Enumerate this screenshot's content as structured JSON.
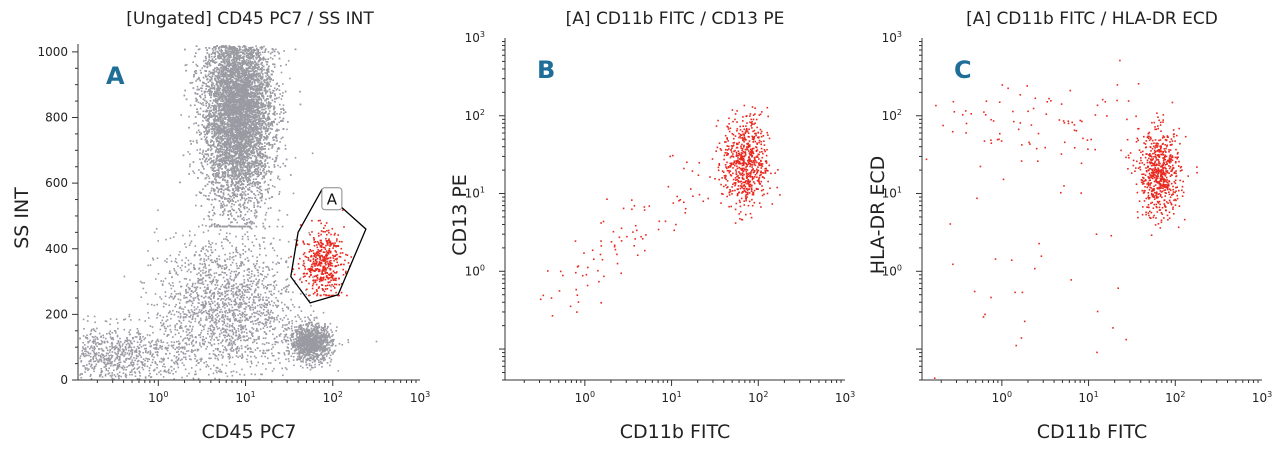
{
  "colors": {
    "gray_events": "#9a9aa2",
    "red_events": "#e8281e",
    "panel_letter": "#1f6e98",
    "axis": "#333333",
    "gate": "#000000"
  },
  "chart_data": [
    {
      "type": "scatter",
      "title": "[Ungated] CD45 PC7 / SS INT",
      "panel_letter": "A",
      "xlabel": "CD45 PC7",
      "ylabel": "SS INT",
      "xscale": "log",
      "yscale": "linear",
      "xlim": [
        0.12,
        1000
      ],
      "ylim": [
        0,
        1024
      ],
      "x_ticks": [
        {
          "value": 1,
          "base": "10",
          "exp": "0"
        },
        {
          "value": 10,
          "base": "10",
          "exp": "1"
        },
        {
          "value": 100,
          "base": "10",
          "exp": "2"
        },
        {
          "value": 1000,
          "base": "10",
          "exp": "3"
        }
      ],
      "y_ticks": [
        {
          "value": 0,
          "label": "0"
        },
        {
          "value": 200,
          "label": "200"
        },
        {
          "value": 400,
          "label": "400"
        },
        {
          "value": 600,
          "label": "600"
        },
        {
          "value": 800,
          "label": "800"
        },
        {
          "value": 1000,
          "label": "1000"
        }
      ],
      "gate": {
        "name": "A",
        "vertices": [
          [
            75,
            580
          ],
          [
            240,
            460
          ],
          [
            115,
            260
          ],
          [
            55,
            235
          ],
          [
            33,
            315
          ],
          [
            40,
            450
          ]
        ]
      },
      "populations": [
        {
          "name": "lymphocyte/granulocyte cloud",
          "color": "gray",
          "count": 9000,
          "x_center": 8,
          "x_spread_log": 0.2,
          "y_center": 830,
          "y_spread": 150,
          "y_range": [
            470,
            1024
          ]
        },
        {
          "name": "low SS events",
          "color": "gray",
          "count": 1800,
          "x_center": 6,
          "x_spread_log": 0.4,
          "y_center": 220,
          "y_spread": 110,
          "y_range": [
            0,
            520
          ]
        },
        {
          "name": "lymphocytes",
          "color": "gray",
          "count": 1100,
          "x_center": 55,
          "x_spread_log": 0.12,
          "y_center": 115,
          "y_spread": 28,
          "y_range": [
            40,
            220
          ]
        },
        {
          "name": "debris",
          "color": "gray",
          "count": 900,
          "x_center": 0.3,
          "x_spread_log": 0.45,
          "y_center": 80,
          "y_spread": 45,
          "y_range": [
            0,
            260
          ]
        },
        {
          "name": "gated monocytes",
          "color": "red",
          "count": 450,
          "x_center": 75,
          "x_spread_log": 0.12,
          "y_center": 360,
          "y_spread": 50,
          "y_range": [
            260,
            520
          ]
        }
      ]
    },
    {
      "type": "scatter",
      "title": "[A] CD11b FITC / CD13 PE",
      "panel_letter": "B",
      "xlabel": "CD11b FITC",
      "ylabel": "CD13 PE",
      "xscale": "log",
      "yscale": "log",
      "xlim": [
        0.12,
        1000
      ],
      "ylim": [
        0.04,
        1000
      ],
      "x_ticks": [
        {
          "value": 1,
          "base": "10",
          "exp": "0"
        },
        {
          "value": 10,
          "base": "10",
          "exp": "1"
        },
        {
          "value": 100,
          "base": "10",
          "exp": "2"
        },
        {
          "value": 1000,
          "base": "10",
          "exp": "3"
        }
      ],
      "y_ticks": [
        {
          "value": 1,
          "base": "10",
          "exp": "0"
        },
        {
          "value": 10,
          "base": "10",
          "exp": "1"
        },
        {
          "value": 100,
          "base": "10",
          "exp": "2"
        },
        {
          "value": 1000,
          "base": "10",
          "exp": "3"
        }
      ],
      "populations": [
        {
          "name": "main cluster",
          "color": "red",
          "count": 650,
          "x_center": 70,
          "x_spread_log": 0.13,
          "y_center": 25,
          "y_spread_log": 0.3
        },
        {
          "name": "diagonal scatter",
          "color": "red",
          "count": 90,
          "x_range_log": [
            -0.5,
            1.5
          ],
          "y_range_log": [
            -0.5,
            1.4
          ]
        }
      ]
    },
    {
      "type": "scatter",
      "title": "[A] CD11b FITC / HLA-DR ECD",
      "panel_letter": "C",
      "xlabel": "CD11b FITC",
      "ylabel": "HLA-DR ECD",
      "xscale": "log",
      "yscale": "log",
      "xlim": [
        0.12,
        1000
      ],
      "ylim": [
        0.04,
        1000
      ],
      "x_ticks": [
        {
          "value": 1,
          "base": "10",
          "exp": "0"
        },
        {
          "value": 10,
          "base": "10",
          "exp": "1"
        },
        {
          "value": 100,
          "base": "10",
          "exp": "2"
        },
        {
          "value": 1000,
          "base": "10",
          "exp": "3"
        }
      ],
      "y_ticks": [
        {
          "value": 1,
          "base": "10",
          "exp": "0"
        },
        {
          "value": 10,
          "base": "10",
          "exp": "1"
        },
        {
          "value": 100,
          "base": "10",
          "exp": "2"
        },
        {
          "value": 1000,
          "base": "10",
          "exp": "3"
        }
      ],
      "populations": [
        {
          "name": "main cluster",
          "color": "red",
          "count": 650,
          "x_center": 65,
          "x_spread_log": 0.12,
          "y_center": 18,
          "y_spread_log": 0.28
        },
        {
          "name": "HLA-DR high spread",
          "color": "red",
          "count": 90,
          "x_range_log": [
            -0.6,
            1.7
          ],
          "y_range_log": [
            1.6,
            2.3
          ]
        },
        {
          "name": "sparse low events",
          "color": "red",
          "count": 30,
          "x_range_log": [
            -0.9,
            1.5
          ],
          "y_range_log": [
            -1.2,
            1.2
          ]
        }
      ]
    }
  ]
}
